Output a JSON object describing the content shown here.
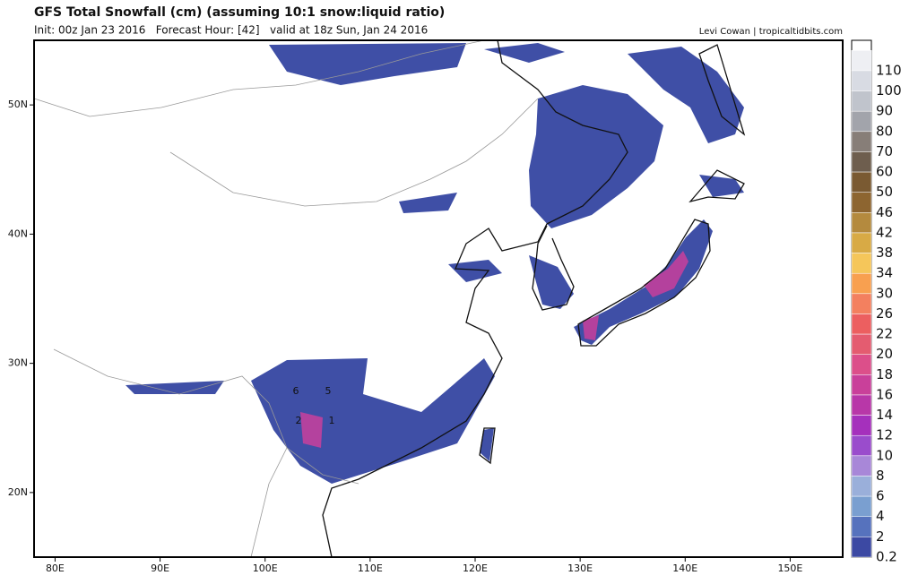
{
  "header": {
    "title": "GFS Total Snowfall (cm) (assuming 10:1 snow:liquid ratio)",
    "subtitle": "Init: 00z Jan 23 2016   Forecast Hour: [42]   valid at 18z Sun, Jan 24 2016",
    "credit": "Levi Cowan | tropicaltidbits.com"
  },
  "map": {
    "lonlim": [
      78,
      155
    ],
    "latlim": [
      15,
      55
    ],
    "lonticks": [
      {
        "value": 80,
        "label": "80E"
      },
      {
        "value": 90,
        "label": "90E"
      },
      {
        "value": 100,
        "label": "100E"
      },
      {
        "value": 110,
        "label": "110E"
      },
      {
        "value": 120,
        "label": "120E"
      },
      {
        "value": 130,
        "label": "130E"
      },
      {
        "value": 140,
        "label": "140E"
      },
      {
        "value": 150,
        "label": "150E"
      }
    ],
    "latticks": [
      {
        "value": 50,
        "label": "50N"
      },
      {
        "value": 40,
        "label": "40N"
      },
      {
        "value": 30,
        "label": "30N"
      },
      {
        "value": 20,
        "label": "20N"
      }
    ],
    "annotations": [
      "6",
      "5",
      "2",
      "1"
    ]
  },
  "colorbar": {
    "levels": [
      110,
      100,
      90,
      80,
      70,
      60,
      50,
      46,
      42,
      38,
      34,
      30,
      26,
      22,
      20,
      18,
      16,
      14,
      12,
      10,
      8,
      6,
      4,
      2,
      0.2
    ],
    "colors": [
      "#eeeff3",
      "#d8dbe3",
      "#c0c4cc",
      "#a2a4ab",
      "#877e78",
      "#6e5e4e",
      "#7a5a32",
      "#8d6530",
      "#b48a3e",
      "#d8aa45",
      "#f5c65a",
      "#f8a050",
      "#f3805f",
      "#ec5f60",
      "#e45c70",
      "#dc4f8a",
      "#c9409a",
      "#b837a8",
      "#a530bc",
      "#9a4ccc",
      "#a887d8",
      "#9aafda",
      "#7a9fd0",
      "#5672bd",
      "#3c49a3"
    ]
  }
}
